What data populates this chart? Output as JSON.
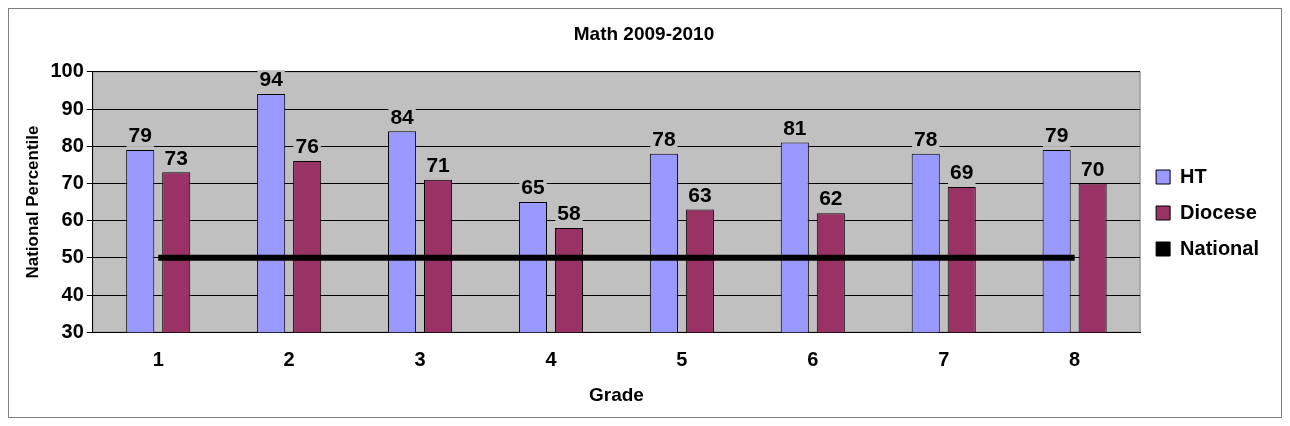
{
  "chart_data": {
    "type": "bar",
    "title": "Math 2009-2010",
    "xlabel": "Grade",
    "ylabel": "National Percentile",
    "categories": [
      "1",
      "2",
      "3",
      "4",
      "5",
      "6",
      "7",
      "8"
    ],
    "series": [
      {
        "name": "HT",
        "color": "#9999ff",
        "values": [
          79,
          94,
          84,
          65,
          78,
          81,
          78,
          79
        ],
        "value_labels": [
          "79",
          "94",
          "84",
          "65",
          "78",
          "81",
          "78",
          "79"
        ]
      },
      {
        "name": "Diocese",
        "color": "#993366",
        "values": [
          73,
          76,
          71,
          58,
          63,
          62,
          69,
          70
        ],
        "value_labels": [
          "73",
          "76",
          "71",
          "58",
          "63",
          "62",
          "69",
          "70"
        ]
      },
      {
        "name": "National",
        "type": "line",
        "color": "#000000",
        "values": [
          50,
          50,
          50,
          50,
          50,
          50,
          50,
          50
        ]
      }
    ],
    "ylim": [
      30,
      100
    ],
    "yticks": [
      30,
      40,
      50,
      60,
      70,
      80,
      90,
      100
    ],
    "grid": "y",
    "legend": "right",
    "marker": "none"
  }
}
